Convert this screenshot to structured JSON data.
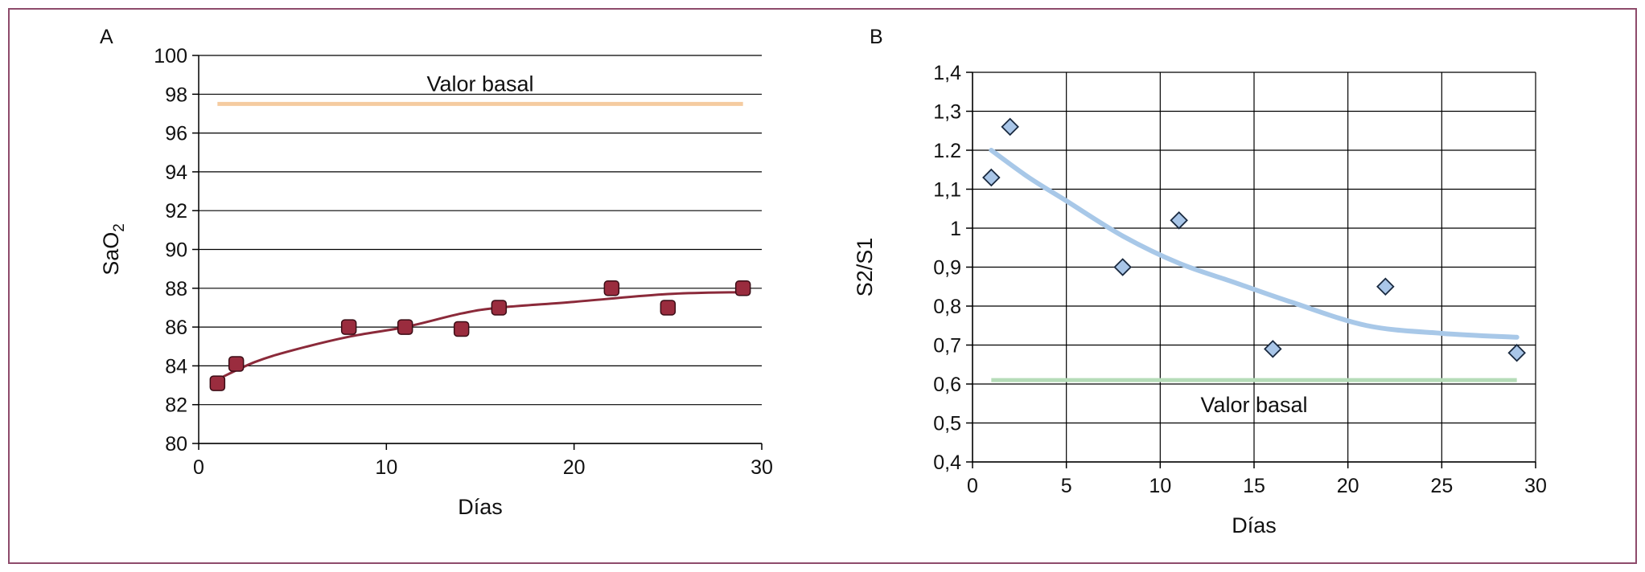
{
  "colors": {
    "frame": "#8e4b6b",
    "grid": "#000000",
    "panel_a_series": "#8b2a3a",
    "panel_a_fill": "#9a2c3e",
    "panel_a_baseline": "#f5cba0",
    "panel_b_marker_fill": "#a9c6e8",
    "panel_b_marker_stroke": "#1a2a40",
    "panel_b_trend": "#a8c8e8",
    "panel_b_baseline": "#b5dcb8"
  },
  "chart_data": [
    {
      "type": "scatter",
      "panel_label": "A",
      "title": "",
      "xlabel": "Días",
      "ylabel": "SaO",
      "ylabel_subscript": "2",
      "xlim": [
        0,
        30
      ],
      "ylim": [
        80,
        100
      ],
      "x_ticks": [
        "0",
        "10",
        "20",
        "30"
      ],
      "x_tick_values": [
        0,
        10,
        20,
        30
      ],
      "y_ticks": [
        "80",
        "82",
        "84",
        "86",
        "88",
        "90",
        "92",
        "94",
        "96",
        "98",
        "100"
      ],
      "y_tick_values": [
        80,
        82,
        84,
        86,
        88,
        90,
        92,
        94,
        96,
        98,
        100
      ],
      "grid": "horizontal",
      "marker": "square",
      "points": [
        {
          "x": 1,
          "y": 83.1
        },
        {
          "x": 2,
          "y": 84.1
        },
        {
          "x": 8,
          "y": 86.0
        },
        {
          "x": 11,
          "y": 86.0
        },
        {
          "x": 14,
          "y": 85.9
        },
        {
          "x": 16,
          "y": 87.0
        },
        {
          "x": 22,
          "y": 88.0
        },
        {
          "x": 25,
          "y": 87.0
        },
        {
          "x": 29,
          "y": 88.0
        }
      ],
      "trend": [
        {
          "x": 1,
          "y": 83.3
        },
        {
          "x": 3,
          "y": 84.2
        },
        {
          "x": 5,
          "y": 84.8
        },
        {
          "x": 8,
          "y": 85.5
        },
        {
          "x": 11,
          "y": 86.0
        },
        {
          "x": 14,
          "y": 86.7
        },
        {
          "x": 16,
          "y": 87.0
        },
        {
          "x": 20,
          "y": 87.3
        },
        {
          "x": 25,
          "y": 87.7
        },
        {
          "x": 29,
          "y": 87.8
        }
      ],
      "baseline": {
        "value": 97.5,
        "x_from": 1,
        "x_to": 29,
        "label": "Valor basal",
        "label_position": "above"
      }
    },
    {
      "type": "scatter",
      "panel_label": "B",
      "title": "",
      "xlabel": "Días",
      "ylabel": "S2/S1",
      "ylabel_subscript": "",
      "xlim": [
        0,
        30
      ],
      "ylim": [
        0.4,
        1.4
      ],
      "x_ticks": [
        "0",
        "5",
        "10",
        "15",
        "20",
        "25",
        "30"
      ],
      "x_tick_values": [
        0,
        5,
        10,
        15,
        20,
        25,
        30
      ],
      "y_ticks": [
        "0,4",
        "0,5",
        "0,6",
        "0,7",
        "0,8",
        "0,9",
        "1",
        "1,1",
        "1.2",
        "1,3",
        "1,4"
      ],
      "y_tick_values": [
        0.4,
        0.5,
        0.6,
        0.7,
        0.8,
        0.9,
        1.0,
        1.1,
        1.2,
        1.3,
        1.4
      ],
      "grid": "both",
      "marker": "diamond",
      "points": [
        {
          "x": 1,
          "y": 1.13
        },
        {
          "x": 2,
          "y": 1.26
        },
        {
          "x": 8,
          "y": 0.9
        },
        {
          "x": 11,
          "y": 1.02
        },
        {
          "x": 16,
          "y": 0.69
        },
        {
          "x": 22,
          "y": 0.85
        },
        {
          "x": 29,
          "y": 0.68
        }
      ],
      "trend": [
        {
          "x": 1,
          "y": 1.2
        },
        {
          "x": 3,
          "y": 1.13
        },
        {
          "x": 5,
          "y": 1.07
        },
        {
          "x": 8,
          "y": 0.98
        },
        {
          "x": 11,
          "y": 0.91
        },
        {
          "x": 14,
          "y": 0.86
        },
        {
          "x": 17,
          "y": 0.81
        },
        {
          "x": 21,
          "y": 0.75
        },
        {
          "x": 25,
          "y": 0.73
        },
        {
          "x": 29,
          "y": 0.72
        }
      ],
      "baseline": {
        "value": 0.61,
        "x_from": 1,
        "x_to": 29,
        "label": "Valor basal",
        "label_position": "below"
      }
    }
  ]
}
